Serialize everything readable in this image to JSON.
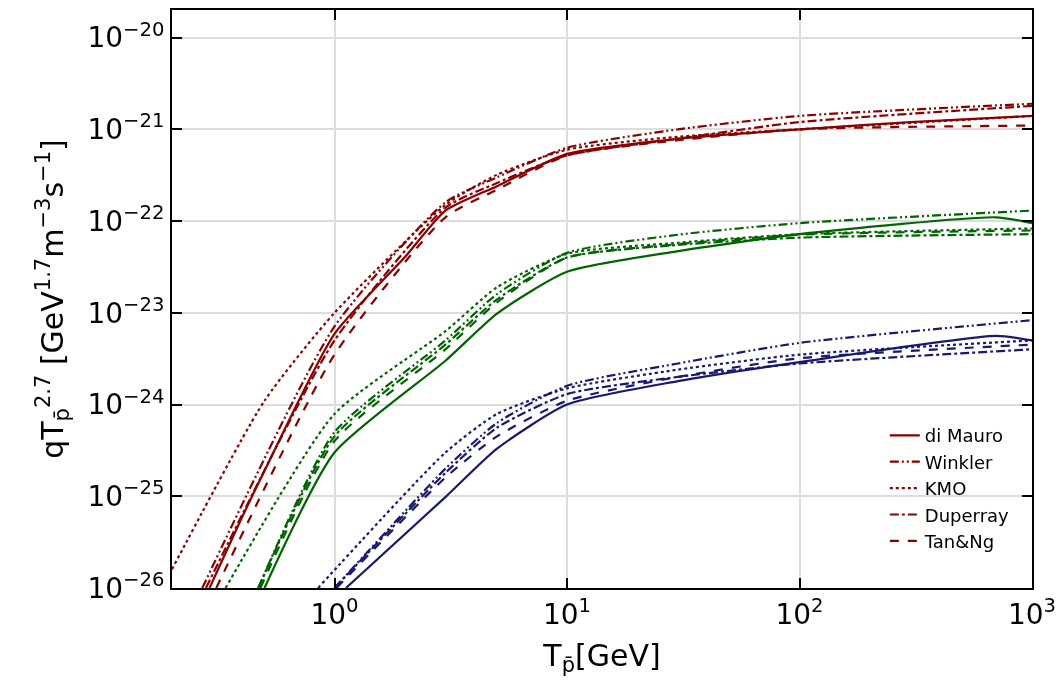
{
  "chart_data": {
    "type": "line",
    "xlabel": "T$_{p̄}$[GeV]",
    "ylabel": "qT$_{p̄}$$^{2.7}$ [GeV$^{1.7}$m$^{−3}$s$^{−1}$]",
    "log": "xy",
    "grid": true,
    "legend": "bottom right",
    "marker": "none",
    "xlim": [
      0.2,
      1000
    ],
    "ylim": [
      1e-26,
      2e-20
    ],
    "xticks": [
      {
        "value": 1,
        "label": "10$^{0}$"
      },
      {
        "value": 10,
        "label": "10$^{1}$"
      },
      {
        "value": 100,
        "label": "10$^{2}$"
      },
      {
        "value": 1000,
        "label": "10$^{3}$"
      }
    ],
    "yticks": [
      {
        "value": 1e-26,
        "label": "10$^{−26}$"
      },
      {
        "value": 1e-25,
        "label": "10$^{−25}$"
      },
      {
        "value": 1e-24,
        "label": "10$^{−24}$"
      },
      {
        "value": 1e-23,
        "label": "10$^{−23}$"
      },
      {
        "value": 1e-22,
        "label": "10$^{−22}$"
      },
      {
        "value": 1e-21,
        "label": "10$^{−21}$"
      },
      {
        "value": 1e-20,
        "label": "10$^{−20}$"
      }
    ],
    "series": [
      {
        "name": "di Mauro",
        "color": "#8b0000",
        "line_style": "solid",
        "x": [
          0.29,
          0.4,
          0.5,
          1,
          2,
          3,
          5,
          10,
          30,
          100,
          300,
          1000
        ],
        "values": [
          1e-26,
          5.9e-26,
          1.9e-25,
          5.9e-24,
          4e-23,
          1.3e-22,
          2.4e-22,
          5.4e-22,
          7.9e-22,
          1e-21,
          1.2e-21,
          1.4e-21
        ]
      },
      {
        "name": "Winkler",
        "color": "#8b0000",
        "line_style": "dashdotdot",
        "x": [
          0.27,
          1,
          3,
          5,
          10,
          30,
          100,
          1000
        ],
        "values": [
          1e-26,
          7.1e-24,
          1.6e-22,
          3e-22,
          6.3e-22,
          1e-21,
          1.4e-21,
          1.9e-21
        ]
      },
      {
        "name": "KMO",
        "color": "#8b0000",
        "line_style": "dotted",
        "x": [
          0.2,
          0.5,
          1,
          3,
          5,
          10,
          30,
          100,
          1000
        ],
        "values": [
          1.6e-26,
          1.1e-24,
          1e-23,
          1.5e-22,
          3.2e-22,
          6e-22,
          8.3e-22,
          1e-21,
          1.4e-21
        ]
      },
      {
        "name": "Duperray",
        "color": "#8b0000",
        "line_style": "dashdot",
        "x": [
          0.28,
          1,
          3,
          5,
          10,
          30,
          100,
          1000
        ],
        "values": [
          1e-26,
          5e-24,
          1.4e-22,
          2.6e-22,
          5.2e-22,
          7.9e-22,
          1.2e-21,
          1.8e-21
        ]
      },
      {
        "name": "Tan&Ng",
        "color": "#8b0000",
        "line_style": "dashed",
        "x": [
          0.31,
          1,
          3,
          5,
          10,
          30,
          100,
          1000
        ],
        "values": [
          1e-26,
          3.5e-24,
          1.1e-22,
          2.2e-22,
          5.2e-22,
          7.6e-22,
          1e-21,
          1.1e-21
        ]
      },
      {
        "color": "#006400",
        "line_style": "solid",
        "x": [
          0.5,
          1,
          3,
          5,
          10,
          30,
          100,
          700,
          1000
        ],
        "values": [
          1e-26,
          3e-25,
          3e-24,
          9.8e-24,
          2.8e-23,
          4.7e-23,
          7.2e-23,
          1.1e-22,
          9.5e-23
        ]
      },
      {
        "color": "#006400",
        "line_style": "dashdotdot",
        "x": [
          0.47,
          1,
          3,
          5,
          10,
          30,
          100,
          1000
        ],
        "values": [
          1e-26,
          5e-25,
          5e-24,
          1.6e-23,
          4.5e-23,
          7.1e-23,
          9.5e-23,
          1.3e-22
        ]
      },
      {
        "color": "#006400",
        "line_style": "dotted",
        "x": [
          0.34,
          1,
          3,
          5,
          10,
          30,
          100,
          1000
        ],
        "values": [
          1e-26,
          7.9e-25,
          6.3e-24,
          1.9e-23,
          4.4e-23,
          5.8e-23,
          7.2e-23,
          8.3e-23
        ]
      },
      {
        "color": "#006400",
        "line_style": "dashdot",
        "x": [
          0.47,
          1,
          3,
          5,
          10,
          30,
          100,
          1000
        ],
        "values": [
          1e-26,
          4.5e-25,
          4.5e-24,
          1.4e-23,
          4e-23,
          5.5e-23,
          6.6e-23,
          7.2e-23
        ]
      },
      {
        "color": "#006400",
        "line_style": "dashed",
        "x": [
          0.48,
          1,
          3,
          5,
          10,
          30,
          100,
          1000
        ],
        "values": [
          1e-26,
          4e-25,
          4e-24,
          1.3e-23,
          4e-23,
          5.6e-23,
          7.1e-23,
          7.9e-23
        ]
      },
      {
        "color": "#191970",
        "line_style": "solid",
        "x": [
          1.12,
          3,
          5,
          10,
          30,
          100,
          700,
          1000
        ],
        "values": [
          1e-26,
          9.8e-26,
          3.3e-25,
          1e-24,
          1.8e-24,
          2.9e-24,
          5.6e-24,
          5e-24
        ]
      },
      {
        "color": "#191970",
        "line_style": "dashdotdot",
        "x": [
          1.0,
          3,
          5,
          10,
          30,
          100,
          1000
        ],
        "values": [
          1e-26,
          2e-25,
          6.3e-25,
          1.6e-24,
          2.8e-24,
          4.7e-24,
          8.3e-24
        ]
      },
      {
        "color": "#191970",
        "line_style": "dotted",
        "x": [
          0.85,
          3,
          5,
          10,
          30,
          100,
          1000
        ],
        "values": [
          1e-26,
          3e-25,
          7.9e-25,
          1.5e-24,
          2.4e-24,
          3.5e-24,
          5e-24
        ]
      },
      {
        "color": "#191970",
        "line_style": "dashdot",
        "x": [
          1.0,
          3,
          5,
          10,
          30,
          100,
          1000
        ],
        "values": [
          1e-26,
          1.8e-25,
          5.6e-25,
          1.3e-24,
          2e-24,
          2.8e-24,
          4e-24
        ]
      },
      {
        "color": "#191970",
        "line_style": "dashed",
        "x": [
          1.02,
          3,
          5,
          10,
          30,
          100,
          1000
        ],
        "values": [
          1e-26,
          1.6e-25,
          4.5e-25,
          1.1e-24,
          2e-24,
          3.2e-24,
          4.5e-24
        ]
      }
    ]
  }
}
